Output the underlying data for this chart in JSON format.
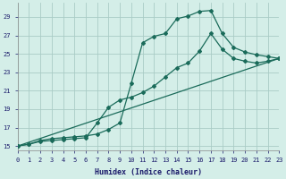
{
  "xlabel": "Humidex (Indice chaleur)",
  "bg_color": "#d4eee8",
  "grid_color": "#aaccc6",
  "line_color": "#1a6b5a",
  "xlim": [
    0,
    23
  ],
  "ylim": [
    14.5,
    30.5
  ],
  "yticks": [
    15,
    17,
    19,
    21,
    23,
    25,
    27,
    29
  ],
  "xticks": [
    0,
    1,
    2,
    3,
    4,
    5,
    6,
    7,
    8,
    9,
    10,
    11,
    12,
    13,
    14,
    15,
    16,
    17,
    18,
    19,
    20,
    21,
    22,
    23
  ],
  "curve1_x": [
    0,
    1,
    2,
    3,
    4,
    5,
    6,
    7,
    8,
    9,
    10,
    11,
    12,
    13,
    14,
    15,
    16,
    17,
    18,
    19,
    20,
    21,
    22,
    23
  ],
  "curve1_y": [
    15.0,
    15.2,
    15.6,
    15.8,
    15.9,
    16.0,
    16.1,
    16.3,
    16.8,
    17.5,
    21.8,
    26.2,
    26.9,
    27.2,
    28.8,
    29.1,
    29.6,
    29.7,
    27.2,
    25.7,
    25.2,
    24.9,
    24.7,
    24.5
  ],
  "curve2_x": [
    0,
    1,
    2,
    3,
    4,
    5,
    6,
    7,
    8,
    9,
    10,
    11,
    12,
    13,
    14,
    15,
    16,
    17,
    18,
    19,
    20,
    21,
    22,
    23
  ],
  "curve2_y": [
    15.0,
    15.2,
    15.5,
    15.6,
    15.7,
    15.8,
    15.9,
    17.5,
    19.2,
    20.0,
    20.3,
    20.8,
    21.5,
    22.5,
    23.5,
    24.0,
    25.3,
    27.2,
    25.5,
    24.5,
    24.2,
    24.0,
    24.2,
    24.5
  ],
  "curve3_x": [
    0,
    23
  ],
  "curve3_y": [
    15.0,
    24.5
  ]
}
